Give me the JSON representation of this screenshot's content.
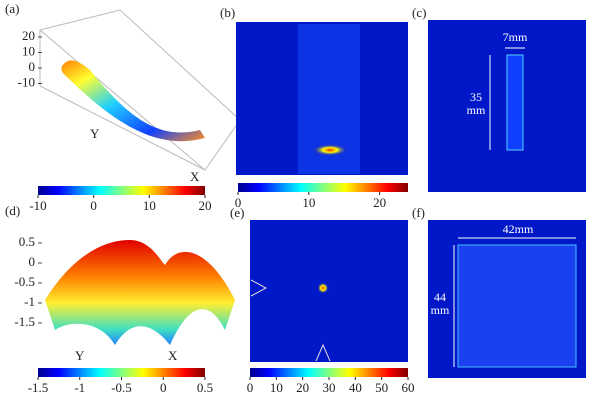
{
  "panels": [
    {
      "label": "(a)",
      "axis_ticks": [
        20,
        10,
        0,
        -10
      ],
      "axis_labels": [
        "Y",
        "X"
      ],
      "colorbar": {
        "lim": [
          -10,
          20
        ],
        "ticks": [
          -10,
          0,
          10,
          20
        ]
      }
    },
    {
      "label": "(b)",
      "colorbar": {
        "lim": [
          0,
          24
        ],
        "ticks": [
          0,
          10,
          20
        ]
      }
    },
    {
      "label": "(c)",
      "annotations": [
        "7mm",
        "35",
        "mm"
      ]
    },
    {
      "label": "(d)",
      "axis_ticks": [
        0.5,
        0,
        -0.5,
        -1,
        -1.5
      ],
      "axis_labels": [
        "Y",
        "X"
      ],
      "colorbar": {
        "lim": [
          -1.5,
          0.5
        ],
        "ticks": [
          -1.5,
          -1,
          -0.5,
          0,
          0.5
        ]
      }
    },
    {
      "label": "(e)",
      "colorbar": {
        "lim": [
          0,
          60
        ],
        "ticks": [
          0,
          10,
          20,
          30,
          40,
          50,
          60
        ]
      }
    },
    {
      "label": "(f)",
      "annotations": [
        "42mm",
        "44",
        "mm"
      ]
    }
  ]
}
